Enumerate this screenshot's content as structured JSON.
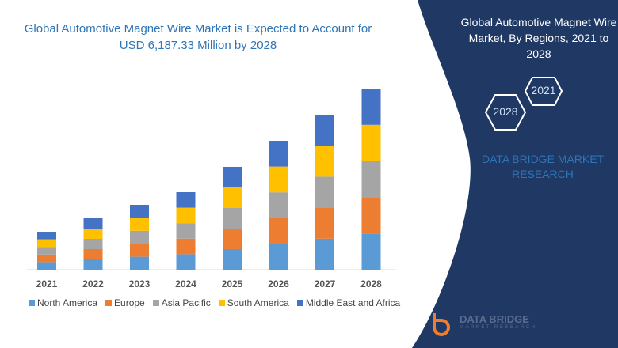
{
  "title": "Global Automotive Magnet Wire Market is Expected to Account for USD 6,187.33 Million by 2028",
  "side_panel": {
    "title": "Global Automotive Magnet Wire Market, By Regions, 2021 to 2028",
    "hex_left": "2028",
    "hex_right": "2021",
    "brand": "DATA BRIDGE MARKET RESEARCH",
    "logo_name": "DATA BRIDGE",
    "logo_sub": "MARKET RESEARCH",
    "panel_color": "#1f3864"
  },
  "chart_data": {
    "type": "bar",
    "stacked": true,
    "title": "Global Automotive Magnet Wire Market is Expected to Account for USD 6,187.33 Million by 2028",
    "categories": [
      "2021",
      "2022",
      "2023",
      "2024",
      "2025",
      "2026",
      "2027",
      "2028"
    ],
    "series": [
      {
        "name": "North America",
        "color": "#5b9bd5",
        "values": [
          9.6,
          13,
          16.4,
          19.6,
          26,
          32.6,
          39.2,
          45.8
        ]
      },
      {
        "name": "Europe",
        "color": "#ed7d31",
        "values": [
          9.6,
          13,
          16.4,
          19.6,
          26,
          32.6,
          39.2,
          45.8
        ]
      },
      {
        "name": "Asia Pacific",
        "color": "#a5a5a5",
        "values": [
          9.6,
          13,
          16.4,
          19.6,
          26,
          32.6,
          39.2,
          45.8
        ]
      },
      {
        "name": "South America",
        "color": "#ffc000",
        "values": [
          9.6,
          13,
          16.4,
          19.6,
          26,
          32.6,
          39.2,
          45.8
        ]
      },
      {
        "name": "Middle East and Africa",
        "color": "#4472c4",
        "values": [
          9.6,
          13,
          16.4,
          19.6,
          26,
          32.6,
          39.2,
          45.8
        ]
      }
    ],
    "ylim": [
      0,
      229
    ],
    "grid": false,
    "legend": "bottom",
    "yaxis_shown": false
  }
}
